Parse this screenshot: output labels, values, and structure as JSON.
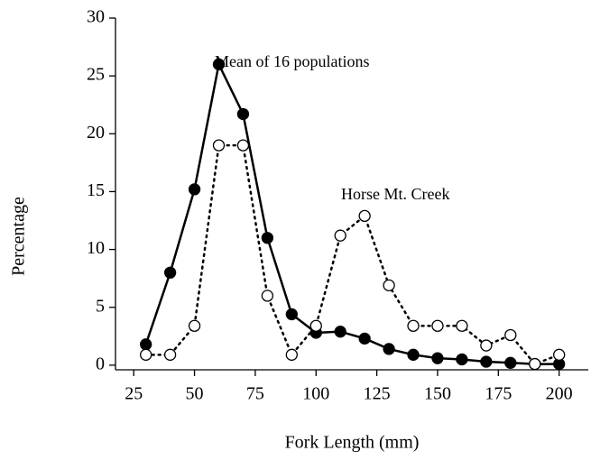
{
  "chart_data": {
    "type": "line",
    "xlabel": "Fork Length (mm)",
    "ylabel": "Percentage",
    "x": [
      30,
      40,
      50,
      60,
      70,
      80,
      90,
      100,
      110,
      120,
      130,
      140,
      150,
      160,
      170,
      180,
      190,
      200
    ],
    "series": [
      {
        "name": "Mean of 16 populations",
        "color": "#000000",
        "line_style": "solid",
        "marker_fill": "filled",
        "values": [
          1.8,
          8,
          15.2,
          26,
          21.7,
          11,
          4.4,
          2.8,
          2.9,
          2.3,
          1.4,
          0.9,
          0.6,
          0.5,
          0.3,
          0.2,
          0.1,
          0.1
        ]
      },
      {
        "name": "Horse Mt. Creek",
        "color": "#000000",
        "line_style": "dotted",
        "marker_fill": "open",
        "values": [
          0.9,
          0.9,
          3.4,
          19,
          19,
          6,
          0.9,
          3.4,
          11.2,
          12.9,
          6.9,
          3.4,
          3.4,
          3.4,
          1.7,
          2.6,
          0.1,
          0.9
        ]
      }
    ],
    "xlim": [
      17.5,
      212
    ],
    "xticks": [
      25,
      50,
      75,
      100,
      125,
      150,
      175,
      200
    ],
    "ylim": [
      -0.4,
      30
    ],
    "yticks": [
      0,
      5,
      10,
      15,
      20,
      25,
      30
    ],
    "grid": false
  }
}
